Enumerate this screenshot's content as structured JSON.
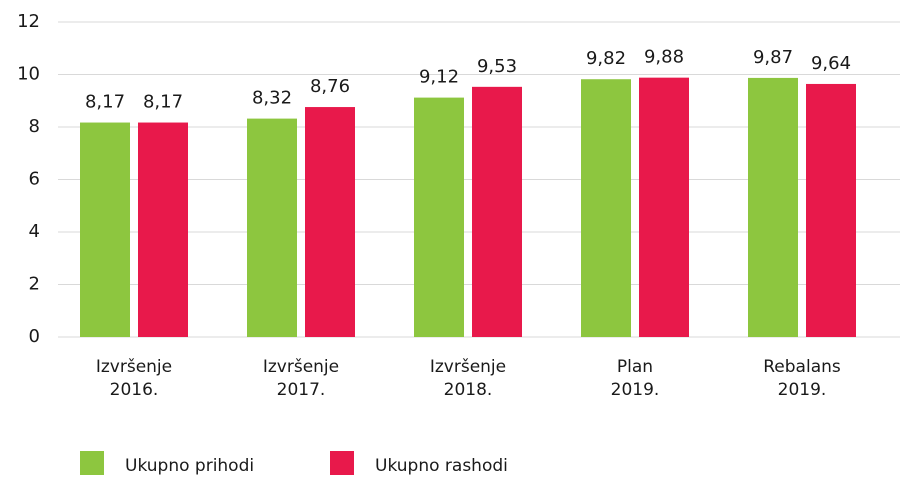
{
  "chart_data": {
    "type": "bar",
    "categories": [
      [
        "Izvršenje",
        "2016."
      ],
      [
        "Izvršenje",
        "2017."
      ],
      [
        "Izvršenje",
        "2018."
      ],
      [
        "Plan",
        "2019."
      ],
      [
        "Rebalans",
        "2019."
      ]
    ],
    "series": [
      {
        "name": "Ukupno prihodi",
        "color": "#8dc63f",
        "values": [
          8.17,
          8.32,
          9.12,
          9.82,
          9.87
        ],
        "value_labels": [
          "8,17",
          "8,32",
          "9,12",
          "9,82",
          "9,87"
        ]
      },
      {
        "name": "Ukupno rashodi",
        "color": "#e8194b",
        "values": [
          8.17,
          8.76,
          9.53,
          9.88,
          9.64
        ],
        "value_labels": [
          "8,17",
          "8,76",
          "9,53",
          "9,88",
          "9,64"
        ]
      }
    ],
    "ylim": [
      0,
      12
    ],
    "yticks": [
      0,
      2,
      4,
      6,
      8,
      10,
      12
    ],
    "grid": true
  }
}
